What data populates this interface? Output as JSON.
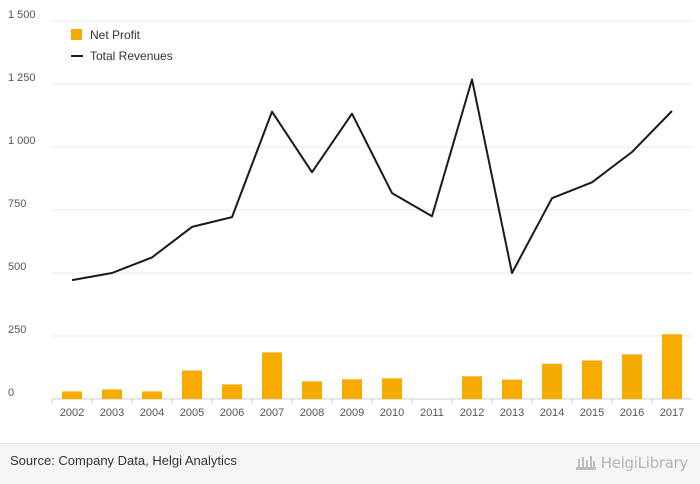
{
  "chart_data": {
    "type": "bar+line",
    "categories": [
      "2002",
      "2003",
      "2004",
      "2005",
      "2006",
      "2007",
      "2008",
      "2009",
      "2010",
      "2011",
      "2012",
      "2013",
      "2014",
      "2015",
      "2016",
      "2017"
    ],
    "series": [
      {
        "name": "Net Profit",
        "type": "bar",
        "color": "#f5ab00",
        "values": [
          30,
          38,
          30,
          113,
          58,
          185,
          70,
          78,
          82,
          0,
          90,
          77,
          140,
          153,
          177,
          257
        ]
      },
      {
        "name": "Total Revenues",
        "type": "line",
        "color": "#1a1a1a",
        "values": [
          472,
          500,
          562,
          683,
          722,
          1140,
          900,
          1132,
          817,
          725,
          1268,
          500,
          797,
          860,
          980,
          1143
        ]
      }
    ],
    "yticks": [
      0,
      250,
      500,
      750,
      1000,
      1250,
      1500
    ],
    "ytick_labels": [
      "0",
      "250",
      "500",
      "750",
      "1 000",
      "1 250",
      "1 500"
    ],
    "ylim": [
      0,
      1500
    ],
    "grid": true,
    "legend": "top-left"
  },
  "footer": {
    "source": "Source: Company Data, Helgi Analytics",
    "brand": "HelgiLibrary"
  }
}
